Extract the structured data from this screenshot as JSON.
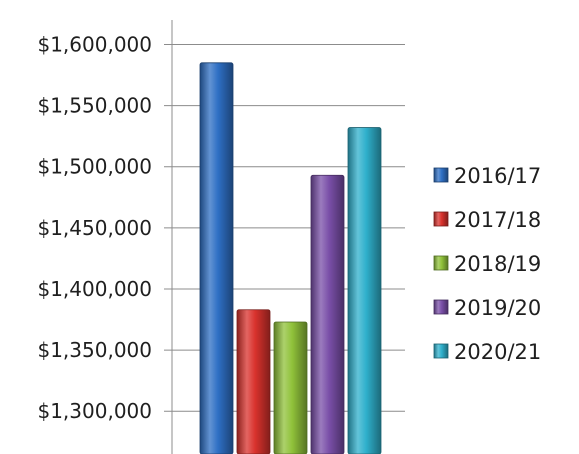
{
  "chart_data": {
    "type": "bar",
    "title": "",
    "xlabel": "",
    "ylabel": "",
    "ylim": [
      1265000,
      1620000
    ],
    "yticks": [
      1300000,
      1350000,
      1400000,
      1450000,
      1500000,
      1550000,
      1600000
    ],
    "ytick_labels": [
      "$1,300,000",
      "$1,350,000",
      "$1,400,000",
      "$1,450,000",
      "$1,500,000",
      "$1,550,000",
      "$1,600,000"
    ],
    "grid": true,
    "legend_position": "right",
    "series": [
      {
        "name": "2016/17",
        "value": 1585000,
        "color": "#2e6fc4"
      },
      {
        "name": "2017/18",
        "value": 1383000,
        "color": "#d9322d"
      },
      {
        "name": "2018/19",
        "value": 1373000,
        "color": "#90c23a"
      },
      {
        "name": "2019/20",
        "value": 1493000,
        "color": "#7a4fa8"
      },
      {
        "name": "2020/21",
        "value": 1532000,
        "color": "#2fb0cc"
      }
    ]
  }
}
